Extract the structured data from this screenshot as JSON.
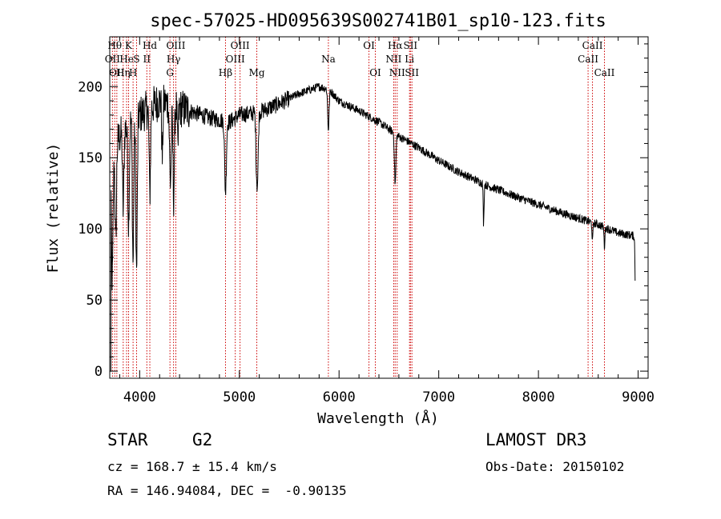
{
  "chart_data": {
    "type": "line",
    "title": "spec-57025-HD095639S002741B01_sp10-123.fits",
    "xlabel": "Wavelength (Å)",
    "ylabel": "Flux (relative)",
    "xlim": [
      3700,
      9100
    ],
    "ylim": [
      -5,
      235
    ],
    "xticks": [
      4000,
      5000,
      6000,
      7000,
      8000,
      9000
    ],
    "yticks": [
      0,
      50,
      100,
      150,
      200
    ],
    "continuum": {
      "x": [
        3700,
        3800,
        3900,
        4000,
        4100,
        4200,
        4300,
        4400,
        4500,
        4700,
        4900,
        5000,
        5200,
        5400,
        5600,
        5800,
        5900,
        6000,
        6200,
        6400,
        6600,
        6800,
        7000,
        7200,
        7500,
        7800,
        8200,
        8600,
        8800,
        8970
      ],
      "y": [
        150,
        165,
        175,
        180,
        185,
        190,
        188,
        185,
        183,
        178,
        175,
        180,
        182,
        188,
        195,
        200,
        198,
        190,
        183,
        175,
        165,
        157,
        148,
        140,
        130,
        122,
        112,
        103,
        97,
        95
      ]
    },
    "absorption_features": [
      {
        "x": 3725,
        "depth": 90,
        "width": 12
      },
      {
        "x": 3760,
        "depth": 70,
        "width": 10
      },
      {
        "x": 3835,
        "depth": 55,
        "width": 10
      },
      {
        "x": 3889,
        "depth": 70,
        "width": 10
      },
      {
        "x": 3934,
        "depth": 100,
        "width": 10
      },
      {
        "x": 3969,
        "depth": 110,
        "width": 10
      },
      {
        "x": 4102,
        "depth": 60,
        "width": 10
      },
      {
        "x": 4227,
        "depth": 40,
        "width": 8
      },
      {
        "x": 4308,
        "depth": 55,
        "width": 12
      },
      {
        "x": 4341,
        "depth": 65,
        "width": 10
      },
      {
        "x": 4383,
        "depth": 30,
        "width": 8
      },
      {
        "x": 4861,
        "depth": 50,
        "width": 12
      },
      {
        "x": 5172,
        "depth": 35,
        "width": 10
      },
      {
        "x": 5184,
        "depth": 38,
        "width": 10
      },
      {
        "x": 5893,
        "depth": 28,
        "width": 10
      },
      {
        "x": 6563,
        "depth": 35,
        "width": 10
      },
      {
        "x": 7450,
        "depth": 28,
        "width": 6
      },
      {
        "x": 8542,
        "depth": 14,
        "width": 6
      },
      {
        "x": 8662,
        "depth": 14,
        "width": 6
      },
      {
        "x": 8980,
        "depth": 80,
        "width": 10
      }
    ],
    "spectral_lines": [
      {
        "x": 3727,
        "label": "OII",
        "row": 2
      },
      {
        "x": 3750,
        "label": "Hθ",
        "row": 1
      },
      {
        "x": 3771,
        "label": "OII",
        "row": 3
      },
      {
        "x": 3835,
        "label": "Hη",
        "row": 3
      },
      {
        "x": 3869,
        "label": "He",
        "row": 2
      },
      {
        "x": 3889,
        "label": "K",
        "row": 1
      },
      {
        "x": 3934,
        "label": "H",
        "row": 3
      },
      {
        "x": 3969,
        "label": "S",
        "row": 2
      },
      {
        "x": 4072,
        "label": "II",
        "row": 2
      },
      {
        "x": 4102,
        "label": "Hd",
        "row": 1
      },
      {
        "x": 4304,
        "label": "G",
        "row": 3
      },
      {
        "x": 4340,
        "label": "Hγ",
        "row": 2
      },
      {
        "x": 4363,
        "label": "OIII",
        "row": 1
      },
      {
        "x": 4861,
        "label": "Hβ",
        "row": 3
      },
      {
        "x": 4959,
        "label": "OIII",
        "row": 2
      },
      {
        "x": 5007,
        "label": "OIII",
        "row": 1
      },
      {
        "x": 5175,
        "label": "Mg",
        "row": 3
      },
      {
        "x": 5893,
        "label": "Na",
        "row": 2
      },
      {
        "x": 6300,
        "label": "OI",
        "row": 1
      },
      {
        "x": 6364,
        "label": "OI",
        "row": 3
      },
      {
        "x": 6548,
        "label": "NII",
        "row": 2
      },
      {
        "x": 6563,
        "label": "Hα",
        "row": 1
      },
      {
        "x": 6583,
        "label": "NII",
        "row": 3
      },
      {
        "x": 6707,
        "label": "Li",
        "row": 2
      },
      {
        "x": 6716,
        "label": "SII",
        "row": 1
      },
      {
        "x": 6731,
        "label": "SII",
        "row": 3
      },
      {
        "x": 8498,
        "label": "CaII",
        "row": 2
      },
      {
        "x": 8542,
        "label": "CaII",
        "row": 1
      },
      {
        "x": 8662,
        "label": "CaII",
        "row": 3
      }
    ],
    "colors": {
      "spectrum": "#000000",
      "line_markers": "#cc0000",
      "axes": "#000000"
    }
  },
  "info": {
    "object_type": "STAR",
    "subclass": "G2",
    "survey": "LAMOST DR3",
    "cz": "cz = 168.7 ± 15.4 km/s",
    "obs_date": "Obs-Date: 20150102",
    "coords": "RA = 146.94084, DEC =  -0.90135"
  }
}
